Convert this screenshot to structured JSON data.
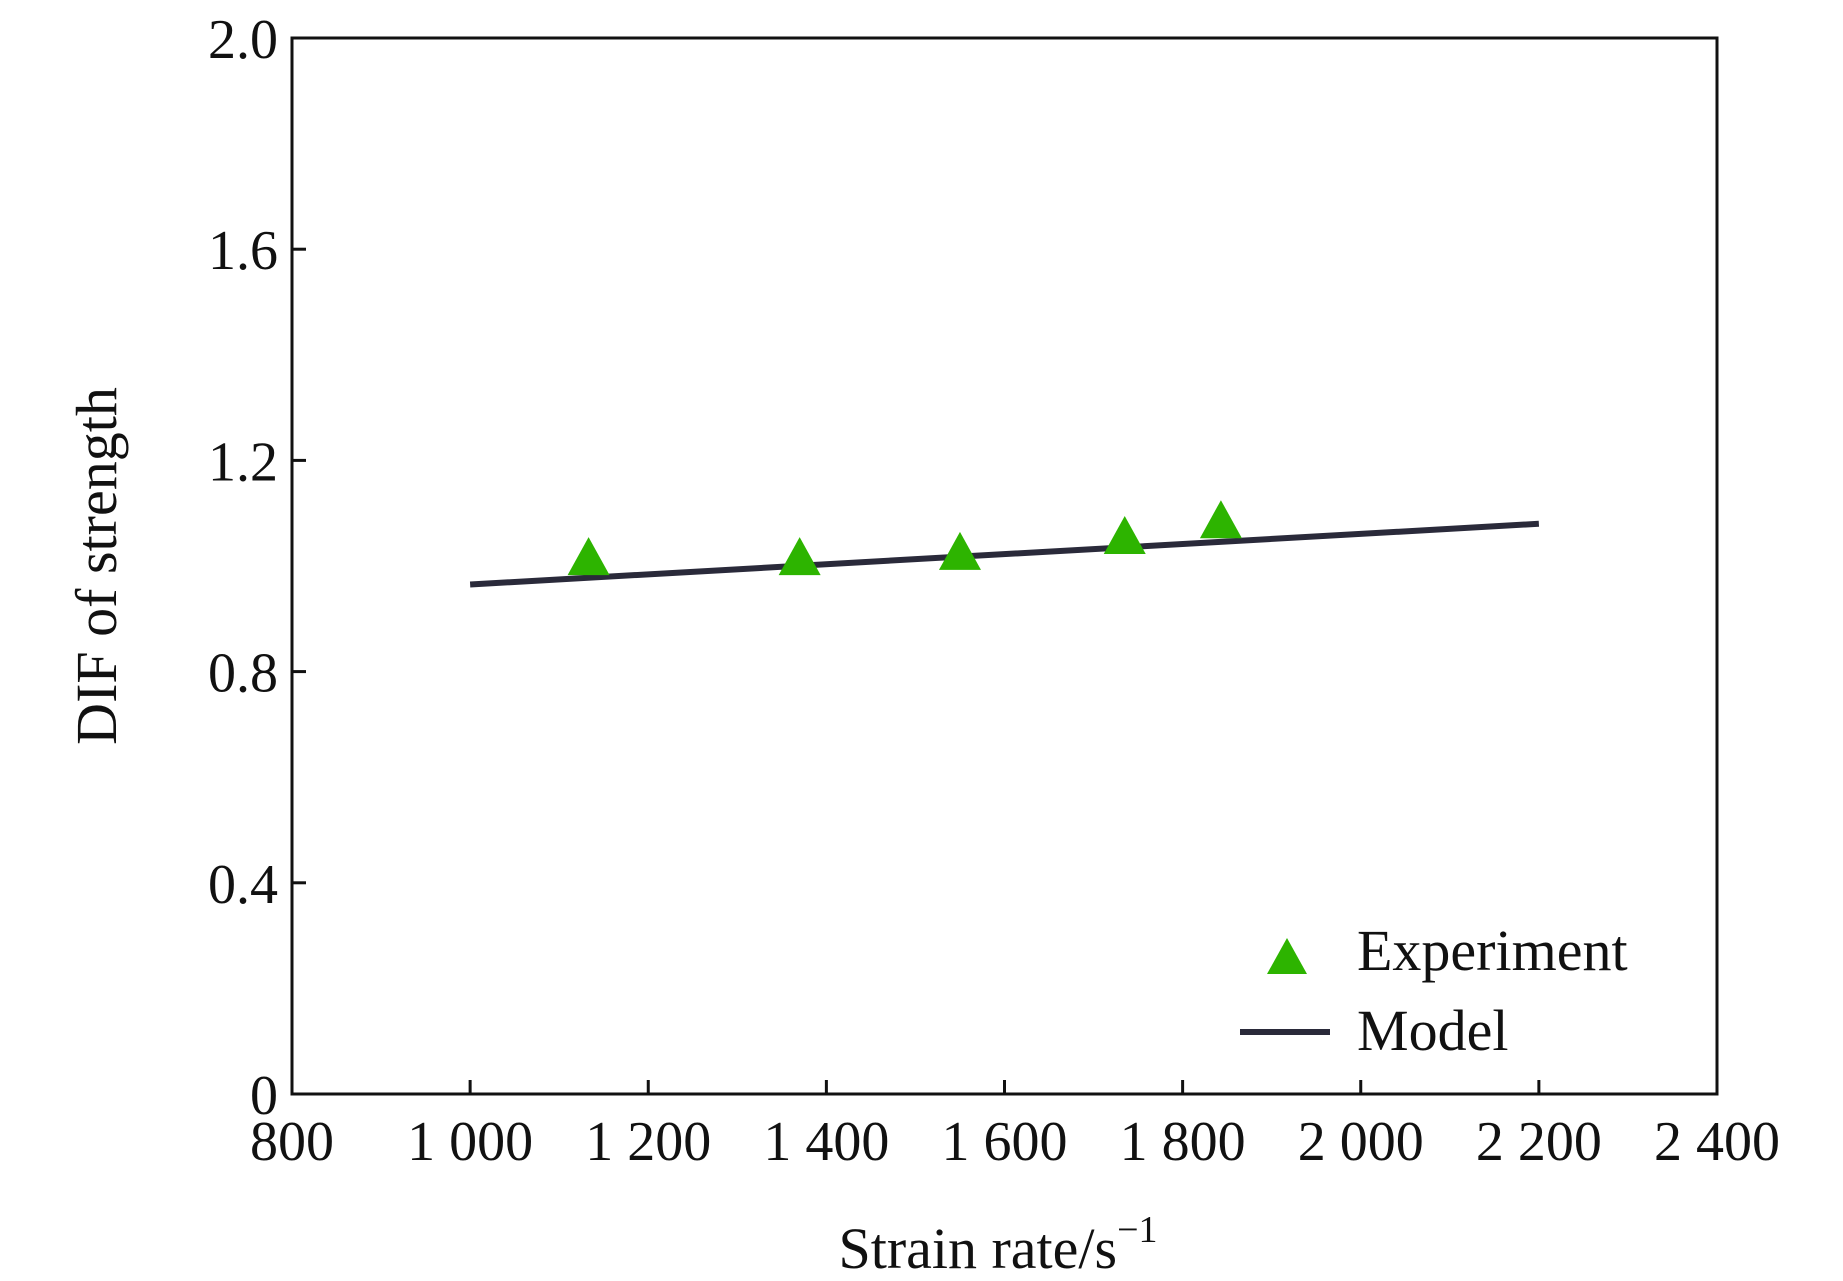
{
  "chart_data": {
    "type": "scatter",
    "xlabel": "Strain rate/s",
    "xlabel_superscript": "−1",
    "ylabel": "DIF of strength",
    "xlim": [
      800,
      2400
    ],
    "ylim": [
      0,
      2.0
    ],
    "x_ticks": [
      800,
      1000,
      1200,
      1400,
      1600,
      1800,
      2000,
      2200,
      2400
    ],
    "x_tick_labels": [
      "800",
      "1 000",
      "1 200",
      "1 400",
      "1 600",
      "1 800",
      "2 000",
      "2 200",
      "2 400"
    ],
    "y_ticks": [
      0,
      0.4,
      0.8,
      1.2,
      1.6,
      2.0
    ],
    "y_tick_labels": [
      "0",
      "0.4",
      "0.8",
      "1.2",
      "1.6",
      "2.0"
    ],
    "grid": false,
    "legend_position": "bottom-right",
    "series": [
      {
        "name": "Experiment",
        "kind": "scatter",
        "marker": "triangle",
        "color": "#2db400",
        "points": [
          {
            "x": 1133,
            "y": 1.01
          },
          {
            "x": 1370,
            "y": 1.01
          },
          {
            "x": 1550,
            "y": 1.02
          },
          {
            "x": 1735,
            "y": 1.05
          },
          {
            "x": 1843,
            "y": 1.08
          }
        ]
      },
      {
        "name": "Model",
        "kind": "line",
        "color": "#2a2a3a",
        "points": [
          {
            "x": 1000,
            "y": 0.965
          },
          {
            "x": 2200,
            "y": 1.08
          }
        ]
      }
    ]
  }
}
